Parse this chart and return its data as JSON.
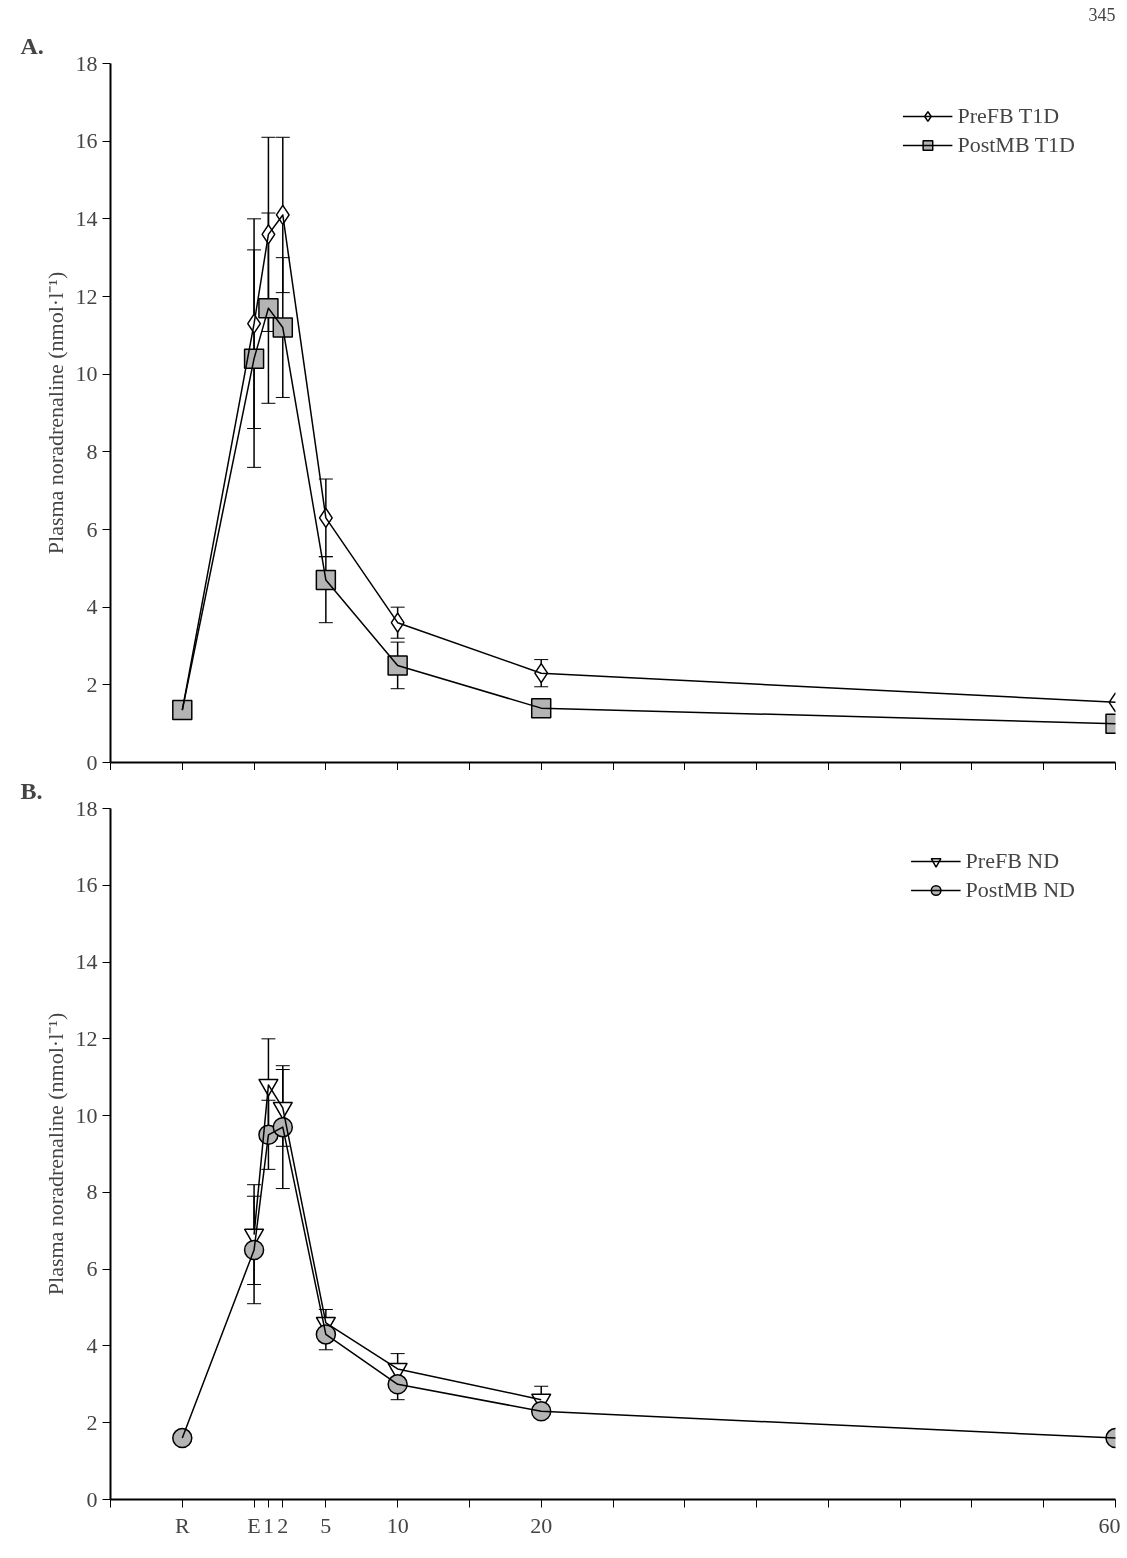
{
  "chart_data": [
    {
      "type": "line",
      "title": "A.",
      "ylabel": "Plasma noradrenaline (nmol·l⁻¹)",
      "annotations": [
        "345"
      ],
      "x": [
        -5,
        0,
        1,
        2,
        5,
        10,
        20,
        60
      ],
      "xlim": [
        -10,
        60
      ],
      "ylim": [
        0,
        18
      ],
      "yticks": [
        0,
        2,
        4,
        6,
        8,
        10,
        12,
        14,
        16,
        18
      ],
      "xticks": [
        {
          "value": -10,
          "label": null
        },
        {
          "value": -5,
          "label": null
        },
        {
          "value": 0,
          "label": null
        },
        5,
        10,
        {
          "value": 15,
          "label": null
        },
        20,
        {
          "value": 25,
          "label": null
        },
        {
          "value": 30,
          "label": null
        },
        {
          "value": 35,
          "label": null
        },
        {
          "value": 40,
          "label": null
        },
        {
          "value": 45,
          "label": null
        },
        {
          "value": 50,
          "label": null
        },
        {
          "value": 55,
          "label": null
        },
        60
      ],
      "tick_labels": "y",
      "grid": false,
      "legend": "top right",
      "series": [
        {
          "name": "PreFB T1D",
          "color": "#ffffff",
          "marker": "diamond",
          "values": [
            1.35,
            11.3,
            13.6,
            14.1,
            6.3,
            3.6,
            2.3,
            1.55
          ],
          "errors": [
            null,
            2.7,
            2.5,
            2.0,
            1.0,
            0.4,
            0.35,
            null
          ]
        },
        {
          "name": "PostMB T1D",
          "color": "#b4b4b4",
          "marker": "square",
          "values": [
            1.35,
            10.4,
            11.7,
            11.2,
            4.7,
            2.5,
            1.4,
            1.0
          ],
          "errors": [
            null,
            2.8,
            2.45,
            1.8,
            [
              3.6,
              5.3
            ],
            0.6,
            null,
            null
          ]
        }
      ]
    },
    {
      "type": "line",
      "title": "B.",
      "ylabel": "Plasma noradrenaline (nmol·l⁻¹)",
      "x": [
        -5,
        0,
        1,
        2,
        5,
        10,
        20,
        60
      ],
      "xlim": [
        -10,
        60
      ],
      "ylim": [
        0,
        18
      ],
      "yticks": [
        0,
        2,
        4,
        6,
        8,
        10,
        12,
        14,
        16,
        18
      ],
      "xticks": [
        {
          "value": -10,
          "label": null
        },
        {
          "value": -5,
          "label": "R"
        },
        {
          "value": 0,
          "label": "E"
        },
        {
          "value": 1,
          "label": "1"
        },
        {
          "value": 2,
          "label": "2"
        },
        5,
        10,
        {
          "value": 15,
          "label": null
        },
        20,
        {
          "value": 25,
          "label": null
        },
        {
          "value": 30,
          "label": null
        },
        {
          "value": 35,
          "label": null
        },
        {
          "value": 40,
          "label": null
        },
        {
          "value": 45,
          "label": null
        },
        {
          "value": 50,
          "label": null
        },
        {
          "value": 55,
          "label": null
        },
        60
      ],
      "grid": false,
      "legend": "top right",
      "series": [
        {
          "name": "PreFB ND",
          "color": "#ffffff",
          "marker": "triangle",
          "values": [
            null,
            6.9,
            10.8,
            10.2,
            4.6,
            3.4,
            2.6,
            null
          ],
          "errors": [
            null,
            1.3,
            1.2,
            1.0,
            0.35,
            0.4,
            0.35,
            null
          ]
        },
        {
          "name": "PostMB ND",
          "color": "#b4b4b4",
          "marker": "circle",
          "values": [
            1.6,
            6.5,
            9.5,
            9.7,
            4.3,
            3.0,
            2.3,
            1.6
          ],
          "errors": [
            null,
            1.4,
            0.9,
            1.6,
            0.4,
            0.4,
            null,
            null
          ]
        }
      ]
    }
  ]
}
